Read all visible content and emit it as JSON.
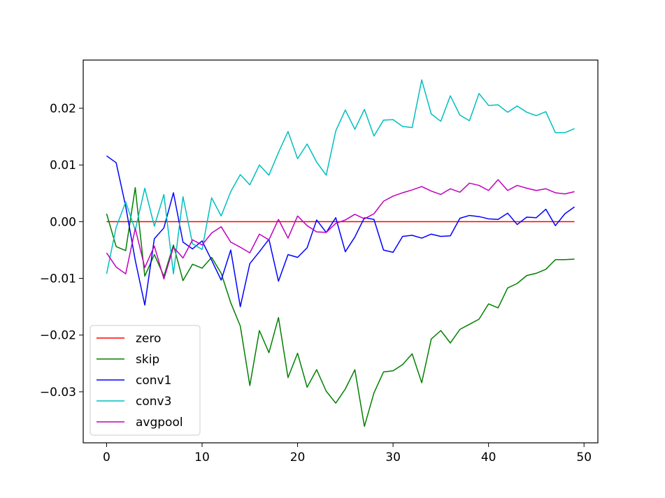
{
  "chart_data": {
    "type": "line",
    "title": "",
    "xlabel": "",
    "ylabel": "",
    "xlim": [
      -2.45,
      51.45
    ],
    "ylim": [
      -0.039,
      0.0285
    ],
    "grid": false,
    "legend_position": "lower-left",
    "x": [
      0,
      1,
      2,
      3,
      4,
      5,
      6,
      7,
      8,
      9,
      10,
      11,
      12,
      13,
      14,
      15,
      16,
      17,
      18,
      19,
      20,
      21,
      22,
      23,
      24,
      25,
      26,
      27,
      28,
      29,
      30,
      31,
      32,
      33,
      34,
      35,
      36,
      37,
      38,
      39,
      40,
      41,
      42,
      43,
      44,
      45,
      46,
      47,
      48,
      49
    ],
    "x_ticks": [
      0,
      10,
      20,
      30,
      40,
      50
    ],
    "x_tick_labels": [
      "0",
      "10",
      "20",
      "30",
      "40",
      "50"
    ],
    "y_ticks": [
      0.02,
      0.01,
      0.0,
      -0.01,
      -0.02,
      -0.03
    ],
    "y_tick_labels": [
      "0.02",
      "0.01",
      "0.00",
      "−0.01",
      "−0.02",
      "−0.03"
    ],
    "series": [
      {
        "name": "zero",
        "color": "#ff0000",
        "values": [
          0,
          0,
          0,
          0,
          0,
          0,
          0,
          0,
          0,
          0,
          0,
          0,
          0,
          0,
          0,
          0,
          0,
          0,
          0,
          0,
          0,
          0,
          0,
          0,
          0,
          0,
          0,
          0,
          0,
          0,
          0,
          0,
          0,
          0,
          0,
          0,
          0,
          0,
          0,
          0,
          0,
          0,
          0,
          0,
          0,
          0,
          0,
          0,
          0,
          0
        ]
      },
      {
        "name": "skip",
        "color": "#008000",
        "values": [
          0.0014,
          -0.0044,
          -0.0051,
          0.006,
          -0.0096,
          -0.0058,
          -0.0096,
          -0.0041,
          -0.0104,
          -0.0075,
          -0.0082,
          -0.0063,
          -0.0091,
          -0.0143,
          -0.0184,
          -0.0289,
          -0.0192,
          -0.0231,
          -0.0169,
          -0.0275,
          -0.0232,
          -0.0292,
          -0.0261,
          -0.0299,
          -0.032,
          -0.0295,
          -0.0261,
          -0.0361,
          -0.0302,
          -0.0265,
          -0.0263,
          -0.0252,
          -0.0233,
          -0.0284,
          -0.0207,
          -0.0192,
          -0.0214,
          -0.019,
          -0.0181,
          -0.0172,
          -0.0145,
          -0.0152,
          -0.0117,
          -0.0109,
          -0.0095,
          -0.0091,
          -0.0084,
          -0.0067,
          -0.0067,
          -0.0066
        ]
      },
      {
        "name": "conv1",
        "color": "#0000ff",
        "values": [
          0.0116,
          0.0104,
          0.0027,
          -0.0068,
          -0.0147,
          -0.003,
          -0.0011,
          0.0051,
          -0.0036,
          -0.0048,
          -0.0034,
          -0.0068,
          -0.0103,
          -0.005,
          -0.015,
          -0.0074,
          -0.0053,
          -0.0031,
          -0.0105,
          -0.0058,
          -0.0063,
          -0.0046,
          0.0003,
          -0.0019,
          0.0007,
          -0.0053,
          -0.0027,
          0.0007,
          0.0004,
          -0.005,
          -0.0054,
          -0.0026,
          -0.0024,
          -0.0029,
          -0.0022,
          -0.0026,
          -0.0025,
          0.0006,
          0.0011,
          0.0009,
          0.0005,
          0.0004,
          0.0015,
          -0.0005,
          0.0008,
          0.0007,
          0.0022,
          -0.0007,
          0.0014,
          0.0026
        ]
      },
      {
        "name": "conv3",
        "color": "#00bfbf",
        "values": [
          -0.0092,
          -0.001,
          0.0035,
          -0.0015,
          0.0059,
          -0.0008,
          0.0048,
          -0.0092,
          0.0044,
          -0.0039,
          -0.0049,
          0.0042,
          0.001,
          0.0053,
          0.0083,
          0.0065,
          0.01,
          0.0082,
          0.0122,
          0.0159,
          0.0111,
          0.0137,
          0.0105,
          0.0082,
          0.016,
          0.0197,
          0.0163,
          0.0198,
          0.0151,
          0.0179,
          0.018,
          0.0168,
          0.0166,
          0.025,
          0.019,
          0.0177,
          0.0222,
          0.0188,
          0.0178,
          0.0226,
          0.0205,
          0.0206,
          0.0193,
          0.0204,
          0.0193,
          0.0187,
          0.0194,
          0.0157,
          0.0157,
          0.0164
        ]
      },
      {
        "name": "avgpool",
        "color": "#bf00bf",
        "values": [
          -0.0055,
          -0.008,
          -0.0092,
          -0.0012,
          -0.0081,
          -0.0043,
          -0.0101,
          -0.0045,
          -0.0064,
          -0.0032,
          -0.0041,
          -0.002,
          -0.0009,
          -0.0036,
          -0.0045,
          -0.0055,
          -0.0022,
          -0.0032,
          0.0004,
          -0.0029,
          0.001,
          -0.0007,
          -0.0018,
          -0.0019,
          -0.0003,
          0.0003,
          0.0013,
          0.0005,
          0.0014,
          0.0036,
          0.0045,
          0.0051,
          0.0056,
          0.0062,
          0.0054,
          0.0048,
          0.0058,
          0.0052,
          0.0068,
          0.0064,
          0.0055,
          0.0074,
          0.0055,
          0.0064,
          0.0059,
          0.0055,
          0.0058,
          0.0051,
          0.0049,
          0.0053
        ]
      }
    ]
  }
}
